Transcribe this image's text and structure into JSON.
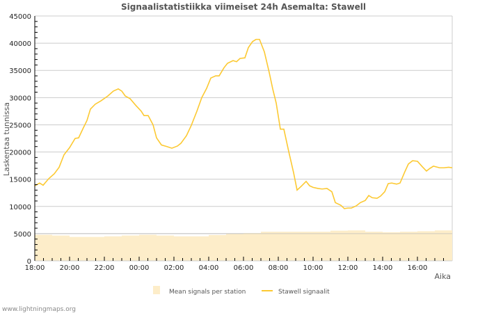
{
  "chart_data": {
    "type": "line",
    "title": "Signaalistatistiikka viimeiset 24h Asemalta: Stawell",
    "xlabel": "Aika",
    "ylabel": "Laskentaa tunnissa",
    "ylim": [
      0,
      45000
    ],
    "xlim_hours": [
      0,
      24
    ],
    "y_ticks": [
      "0",
      "5000",
      "10000",
      "15000",
      "20000",
      "25000",
      "30000",
      "35000",
      "40000",
      "45000"
    ],
    "x_ticks": [
      "18:00",
      "20:00",
      "22:00",
      "00:00",
      "02:00",
      "04:00",
      "06:00",
      "08:00",
      "10:00",
      "12:00",
      "14:00",
      "16:00"
    ],
    "grid": true,
    "legend_position": "bottom",
    "series": [
      {
        "name": "Mean signals per station",
        "kind": "step-area",
        "color": "#fdedc9",
        "hours": [
          0,
          1,
          2,
          3,
          4,
          5,
          6,
          7,
          8,
          9,
          10,
          11,
          12,
          13,
          14,
          15,
          16,
          17,
          18,
          19,
          20,
          21,
          22,
          23
        ],
        "values": [
          4800,
          4650,
          4400,
          4400,
          4500,
          4650,
          4800,
          4650,
          4500,
          4500,
          4750,
          4950,
          5100,
          5350,
          5350,
          5350,
          5350,
          5550,
          5600,
          5350,
          5250,
          5350,
          5450,
          5600
        ]
      },
      {
        "name": "Stawell signaalit",
        "kind": "line",
        "color": "#fcc932",
        "hours": [
          0,
          0.28,
          0.48,
          0.8,
          1.12,
          1.4,
          1.68,
          2,
          2.32,
          2.52,
          2.8,
          3,
          3.2,
          3.48,
          3.8,
          4.2,
          4.52,
          4.8,
          5,
          5.2,
          5.48,
          5.8,
          6.12,
          6.28,
          6.52,
          6.8,
          7,
          7.28,
          7.6,
          7.88,
          8.2,
          8.4,
          8.72,
          9,
          9.32,
          9.6,
          9.88,
          10.12,
          10.4,
          10.6,
          10.88,
          11.08,
          11.4,
          11.6,
          11.8,
          12.08,
          12.28,
          12.52,
          12.72,
          12.92,
          13.2,
          13.48,
          13.68,
          13.88,
          14.12,
          14.32,
          14.6,
          14.88,
          15.08,
          15.32,
          15.6,
          15.8,
          16,
          16.28,
          16.52,
          16.8,
          17.08,
          17.28,
          17.6,
          17.8,
          18,
          18.2,
          18.48,
          18.72,
          19,
          19.2,
          19.4,
          19.68,
          19.88,
          20.12,
          20.32,
          20.52,
          20.8,
          21,
          21.28,
          21.48,
          21.72,
          22,
          22.28,
          22.52,
          22.72,
          22.92,
          23.28,
          23.52,
          23.8,
          24
        ],
        "values": [
          13800,
          14300,
          13900,
          15100,
          16000,
          17200,
          19500,
          20800,
          22500,
          22600,
          24500,
          25800,
          27900,
          28800,
          29400,
          30300,
          31200,
          31600,
          31200,
          30300,
          29800,
          28600,
          27500,
          26700,
          26700,
          25000,
          22600,
          21300,
          21000,
          20700,
          21100,
          21600,
          23000,
          24900,
          27500,
          30000,
          31700,
          33600,
          34000,
          34000,
          35500,
          36300,
          36800,
          36600,
          37200,
          37300,
          39200,
          40300,
          40700,
          40700,
          38400,
          34600,
          31600,
          29000,
          24200,
          24200,
          20100,
          16200,
          13000,
          13700,
          14600,
          13800,
          13500,
          13300,
          13200,
          13300,
          12700,
          10700,
          10200,
          9600,
          9700,
          9700,
          10100,
          10700,
          11100,
          12000,
          11600,
          11500,
          11900,
          12700,
          14200,
          14300,
          14100,
          14300,
          16400,
          17800,
          18400,
          18300,
          17300,
          16500,
          17000,
          17400,
          17100,
          17100,
          17200,
          17100
        ]
      }
    ]
  },
  "footer": {
    "watermark": "www.lightningmaps.org"
  }
}
